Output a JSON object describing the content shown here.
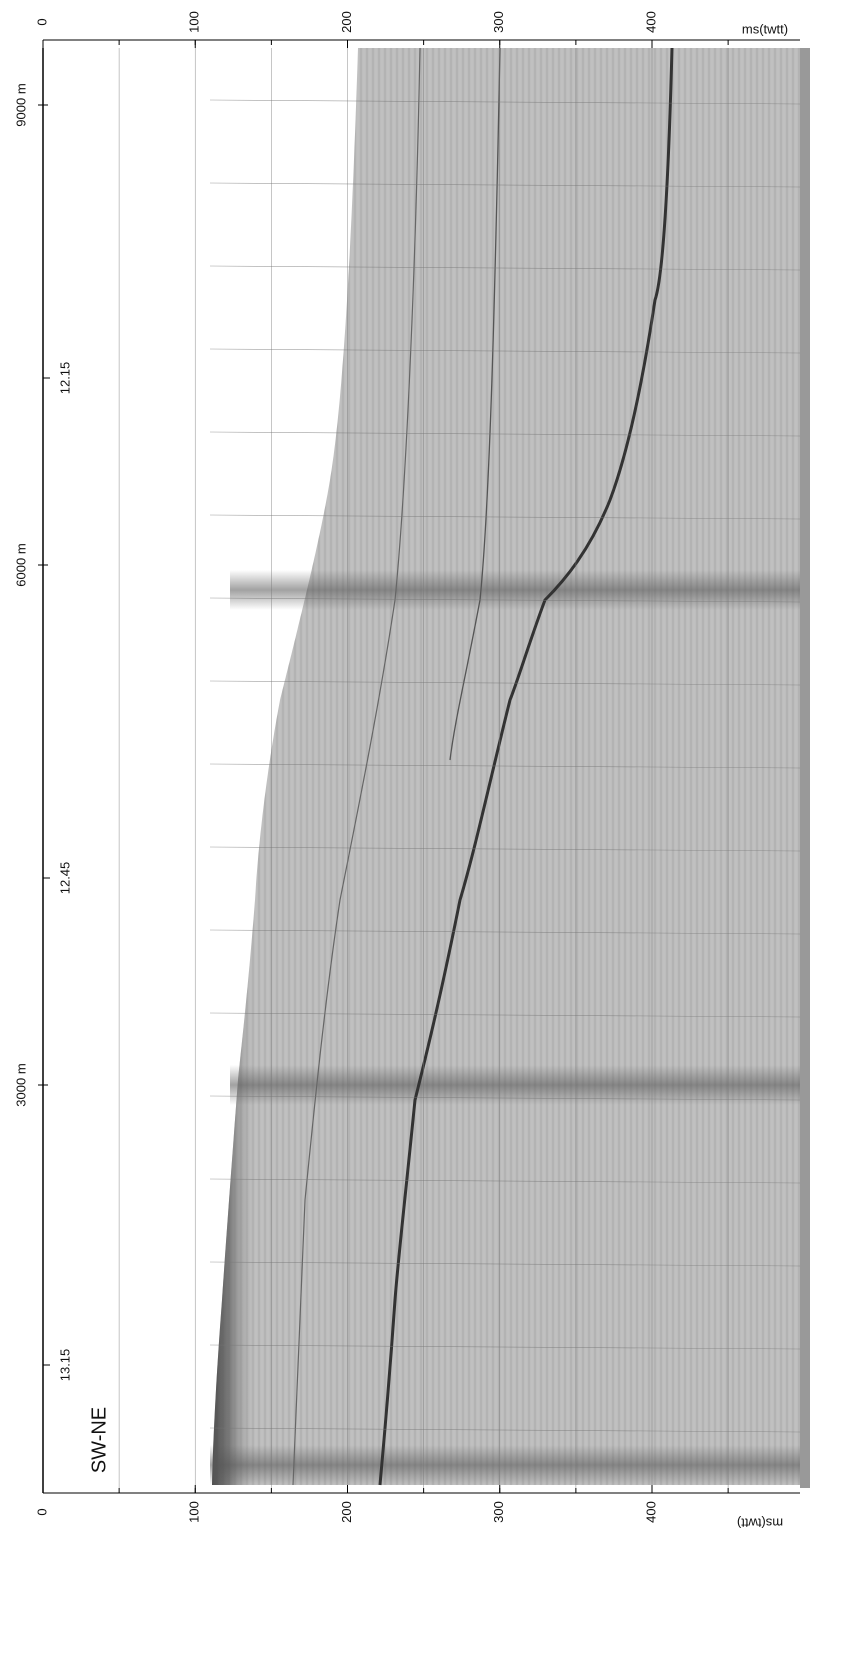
{
  "top_axis": {
    "ticks": [
      0,
      100,
      200,
      300,
      400
    ],
    "unit_label": "ms(twtt)"
  },
  "bottom_axis": {
    "ticks": [
      0,
      100,
      200,
      300,
      400
    ],
    "unit_label": "ms(twtt)"
  },
  "distance_labels": [
    "9000 m",
    "6000 m",
    "3000 m"
  ],
  "time_labels": [
    "12.15",
    "12.45",
    "13.15"
  ],
  "profile_label": "SW-NE"
}
